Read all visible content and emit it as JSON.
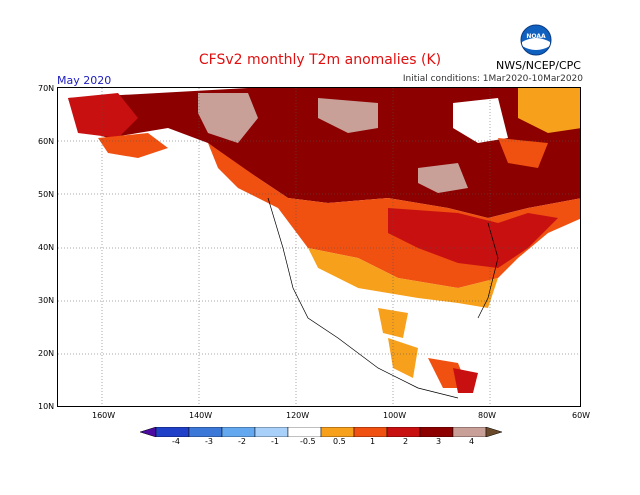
{
  "title": "CFSv2 monthly T2m anomalies (K)",
  "month": "May 2020",
  "initial_conditions": "Initial conditions: 1Mar2020-10Mar2020",
  "agency": "NWS/NCEP/CPC",
  "logo_text": "NOAA",
  "lat_labels": [
    "70N",
    "60N",
    "50N",
    "40N",
    "30N",
    "20N",
    "10N"
  ],
  "lon_labels": [
    "160W",
    "140W",
    "120W",
    "100W",
    "80W",
    "60W"
  ],
  "colorbar": {
    "ticks": [
      "-4",
      "-3",
      "-2",
      "-1",
      "-0.5",
      "0.5",
      "1",
      "2",
      "3",
      "4"
    ],
    "colors": [
      "#4b0aa0",
      "#2040c8",
      "#3c78d8",
      "#64a8f0",
      "#a8d0f8",
      "#ffffff",
      "#f7a01c",
      "#f05010",
      "#c81010",
      "#8c0000",
      "#c8a098"
    ]
  }
}
